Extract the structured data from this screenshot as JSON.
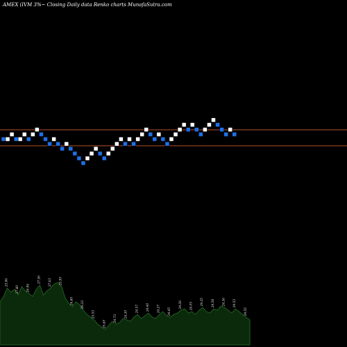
{
  "chart_data": {
    "type": "renko",
    "title": "AMEX  (IVM 3%~  Closing Daily data  Renko  charts MunafaSutra.com",
    "ylim": [
      0,
      10
    ],
    "reference_lines": [
      {
        "value": 9.2,
        "color": "#b5502d"
      },
      {
        "value": 7.6,
        "color": "#b5502d"
      }
    ],
    "colors": {
      "up": "#ffffff",
      "down": "#1e6fe6",
      "background": "#000000",
      "volume_fill": "#0b2a0b",
      "volume_line": "#1f5c1f"
    },
    "bricks": [
      {
        "dir": "down",
        "level": 8
      },
      {
        "dir": "up",
        "level": 8
      },
      {
        "dir": "up",
        "level": 9
      },
      {
        "dir": "down",
        "level": 8
      },
      {
        "dir": "up",
        "level": 8
      },
      {
        "dir": "up",
        "level": 9
      },
      {
        "dir": "down",
        "level": 8
      },
      {
        "dir": "up",
        "level": 9
      },
      {
        "dir": "up",
        "level": 10
      },
      {
        "dir": "down",
        "level": 9
      },
      {
        "dir": "down",
        "level": 8
      },
      {
        "dir": "down",
        "level": 7
      },
      {
        "dir": "up",
        "level": 8
      },
      {
        "dir": "down",
        "level": 7
      },
      {
        "dir": "down",
        "level": 6
      },
      {
        "dir": "up",
        "level": 7
      },
      {
        "dir": "down",
        "level": 6
      },
      {
        "dir": "down",
        "level": 5
      },
      {
        "dir": "down",
        "level": 4
      },
      {
        "dir": "down",
        "level": 3
      },
      {
        "dir": "up",
        "level": 4
      },
      {
        "dir": "up",
        "level": 5
      },
      {
        "dir": "up",
        "level": 6
      },
      {
        "dir": "down",
        "level": 5
      },
      {
        "dir": "down",
        "level": 4
      },
      {
        "dir": "up",
        "level": 5
      },
      {
        "dir": "up",
        "level": 6
      },
      {
        "dir": "up",
        "level": 7
      },
      {
        "dir": "up",
        "level": 8
      },
      {
        "dir": "down",
        "level": 7
      },
      {
        "dir": "up",
        "level": 8
      },
      {
        "dir": "down",
        "level": 7
      },
      {
        "dir": "up",
        "level": 8
      },
      {
        "dir": "up",
        "level": 9
      },
      {
        "dir": "up",
        "level": 10
      },
      {
        "dir": "down",
        "level": 9
      },
      {
        "dir": "down",
        "level": 8
      },
      {
        "dir": "up",
        "level": 9
      },
      {
        "dir": "down",
        "level": 8
      },
      {
        "dir": "down",
        "level": 7
      },
      {
        "dir": "up",
        "level": 8
      },
      {
        "dir": "up",
        "level": 9
      },
      {
        "dir": "up",
        "level": 10
      },
      {
        "dir": "up",
        "level": 11
      },
      {
        "dir": "down",
        "level": 10
      },
      {
        "dir": "up",
        "level": 11
      },
      {
        "dir": "down",
        "level": 10
      },
      {
        "dir": "down",
        "level": 9
      },
      {
        "dir": "up",
        "level": 10
      },
      {
        "dir": "up",
        "level": 11
      },
      {
        "dir": "up",
        "level": 12
      },
      {
        "dir": "down",
        "level": 11
      },
      {
        "dir": "down",
        "level": 10
      },
      {
        "dir": "down",
        "level": 9
      },
      {
        "dir": "up",
        "level": 10
      },
      {
        "dir": "down",
        "level": 9
      }
    ],
    "volume_values": [
      62,
      70,
      82,
      76,
      80,
      72,
      84,
      78,
      74,
      70,
      80,
      86,
      72,
      78,
      82,
      88,
      90,
      84,
      68,
      60,
      55,
      62,
      58,
      50,
      44,
      40,
      36,
      30,
      26,
      22,
      28,
      34,
      30,
      32,
      38,
      36,
      34,
      40,
      44,
      38,
      42,
      46,
      40,
      38,
      44,
      48,
      42,
      40,
      44,
      46,
      50,
      52,
      46,
      48,
      44,
      50,
      54,
      48,
      46,
      52,
      50,
      56,
      54,
      50,
      46,
      52,
      48,
      44,
      40,
      36
    ],
    "volume_labels": [
      {
        "text": "23.96",
        "i": 2
      },
      {
        "text": "27.80",
        "i": 5
      },
      {
        "text": "26.94",
        "i": 8
      },
      {
        "text": "27.56",
        "i": 11
      },
      {
        "text": "27.63",
        "i": 14
      },
      {
        "text": "25.93",
        "i": 17
      },
      {
        "text": "26.80",
        "i": 20
      },
      {
        "text": "26.33",
        "i": 23
      },
      {
        "text": "23.53",
        "i": 26
      },
      {
        "text": "25.60",
        "i": 29
      },
      {
        "text": "24.73",
        "i": 32
      },
      {
        "text": "24.30",
        "i": 35
      },
      {
        "text": "24.57",
        "i": 38
      },
      {
        "text": "24.40",
        "i": 41
      },
      {
        "text": "24.27",
        "i": 44
      },
      {
        "text": "24.45",
        "i": 47
      },
      {
        "text": "24.36",
        "i": 50
      },
      {
        "text": "24.05",
        "i": 53
      },
      {
        "text": "24.35",
        "i": 56
      },
      {
        "text": "24.58",
        "i": 59
      },
      {
        "text": "24.36",
        "i": 62
      },
      {
        "text": "24.53",
        "i": 65
      },
      {
        "text": "24.55",
        "i": 68
      }
    ]
  }
}
